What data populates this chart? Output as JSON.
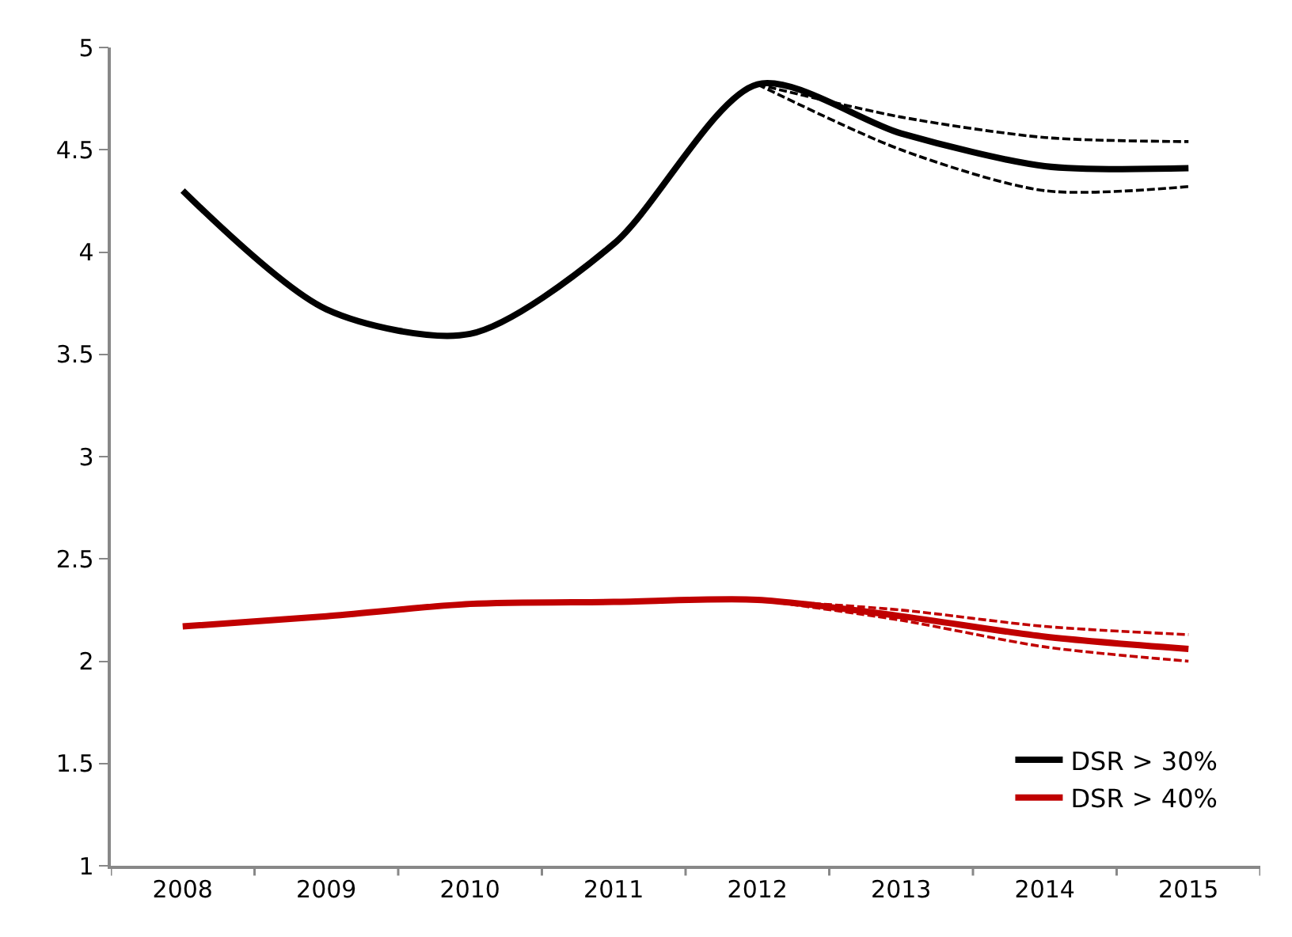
{
  "chart_data": {
    "type": "line",
    "categories": [
      "2008",
      "2009",
      "2010",
      "2011",
      "2012",
      "2013",
      "2014",
      "2015"
    ],
    "series": [
      {
        "name": "DSR > 30%",
        "color": "#000000",
        "values": [
          4.3,
          3.72,
          3.6,
          4.04,
          4.82,
          4.58,
          4.42,
          4.41
        ]
      },
      {
        "color": "#000000",
        "line_style": "dashed",
        "values": [
          null,
          null,
          null,
          null,
          4.82,
          4.66,
          4.56,
          4.54
        ]
      },
      {
        "color": "#000000",
        "line_style": "dashed",
        "values": [
          null,
          null,
          null,
          null,
          4.82,
          4.5,
          4.3,
          4.32
        ]
      },
      {
        "name": "DSR > 40%",
        "color": "#c00000",
        "values": [
          2.17,
          2.22,
          2.28,
          2.29,
          2.3,
          2.22,
          2.12,
          2.06
        ]
      },
      {
        "color": "#c00000",
        "line_style": "dashed",
        "values": [
          null,
          null,
          null,
          null,
          2.3,
          2.25,
          2.17,
          2.13
        ]
      },
      {
        "color": "#c00000",
        "line_style": "dashed",
        "values": [
          null,
          null,
          null,
          null,
          2.3,
          2.2,
          2.07,
          2.0
        ]
      }
    ],
    "ylim": [
      1,
      5
    ],
    "yticks": [
      1,
      1.5,
      2,
      2.5,
      3,
      3.5,
      4,
      4.5,
      5
    ],
    "legend": "bottom right",
    "line_style": "solid",
    "marker": "none"
  }
}
